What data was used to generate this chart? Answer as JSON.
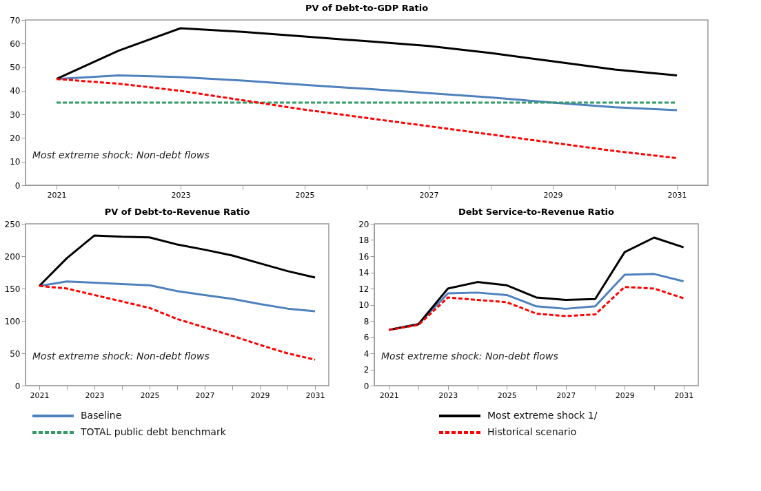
{
  "chart_data": [
    {
      "type": "line",
      "title": "PV of Debt-to-GDP Ratio",
      "categories": [
        "2021",
        null,
        "2023",
        null,
        "2025",
        null,
        "2027",
        null,
        "2029",
        null,
        "2031"
      ],
      "ylim": [
        0,
        70
      ],
      "yticks": [
        0,
        10,
        20,
        30,
        40,
        50,
        60,
        70
      ],
      "grid": false,
      "legend": "bottom",
      "annotations": [
        "Most extreme shock: Non-debt flows"
      ],
      "series": [
        {
          "name": "Baseline",
          "color": "#4f81bd",
          "line_style": "solid",
          "values": [
            45,
            46.5,
            45.8,
            44.3,
            42.5,
            40.8,
            39,
            37.2,
            35,
            33,
            31.8
          ]
        },
        {
          "name": "Most extreme shock 1/",
          "color": "#000000",
          "line_style": "solid",
          "values": [
            45,
            57,
            66.5,
            65,
            63,
            61,
            59,
            56,
            52.5,
            49,
            46.5
          ]
        },
        {
          "name": "TOTAL public debt benchmark",
          "color": "#339966",
          "line_style": "dashed",
          "values": [
            35,
            35,
            35,
            35,
            35,
            35,
            35,
            35,
            35,
            35,
            35
          ]
        },
        {
          "name": "Historical scenario",
          "color": "#ff0000",
          "line_style": "dashed",
          "values": [
            45,
            43,
            40,
            36,
            32,
            28.5,
            25,
            21.5,
            18,
            14.5,
            11.5
          ]
        }
      ]
    },
    {
      "type": "line",
      "title": "PV of Debt-to-Revenue Ratio",
      "categories": [
        "2021",
        null,
        "2023",
        null,
        "2025",
        null,
        "2027",
        null,
        "2029",
        null,
        "2031"
      ],
      "ylim": [
        0,
        250
      ],
      "yticks": [
        0,
        50,
        100,
        150,
        200,
        250
      ],
      "grid": false,
      "annotations": [
        "Most extreme shock: Non-debt flows"
      ],
      "series": [
        {
          "color": "#4f81bd",
          "line_style": "solid",
          "values": [
            154,
            161,
            159,
            157,
            155,
            146,
            140,
            134,
            126,
            119,
            115
          ]
        },
        {
          "color": "#000000",
          "line_style": "solid",
          "values": [
            154,
            197,
            232,
            230,
            229,
            218,
            210,
            201,
            189,
            177,
            167
          ]
        },
        {
          "color": "#ff0000",
          "line_style": "dashed",
          "values": [
            154,
            150,
            140,
            130,
            120,
            103,
            90,
            77,
            63,
            50,
            40
          ]
        }
      ]
    },
    {
      "type": "line",
      "title": "Debt Service-to-Revenue Ratio",
      "categories": [
        "2021",
        null,
        "2023",
        null,
        "2025",
        null,
        "2027",
        null,
        "2029",
        null,
        "2031"
      ],
      "ylim": [
        0,
        20
      ],
      "yticks": [
        0,
        2,
        4,
        6,
        8,
        10,
        12,
        14,
        16,
        18,
        20
      ],
      "grid": false,
      "annotations": [
        "Most extreme shock: Non-debt flows"
      ],
      "series": [
        {
          "color": "#4f81bd",
          "line_style": "solid",
          "values": [
            6.9,
            7.6,
            11.4,
            11.5,
            11.2,
            9.8,
            9.5,
            9.8,
            13.7,
            13.8,
            12.9
          ]
        },
        {
          "color": "#000000",
          "line_style": "solid",
          "values": [
            6.9,
            7.6,
            12.0,
            12.8,
            12.4,
            10.9,
            10.6,
            10.7,
            16.5,
            18.3,
            17.1
          ]
        },
        {
          "color": "#ff0000",
          "line_style": "dashed",
          "values": [
            6.9,
            7.5,
            10.9,
            10.6,
            10.3,
            8.9,
            8.6,
            8.8,
            12.2,
            12.0,
            10.8
          ]
        }
      ]
    }
  ]
}
